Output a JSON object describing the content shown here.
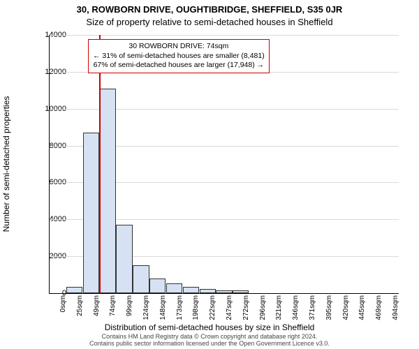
{
  "titles": {
    "line1": "30, ROWBORN DRIVE, OUGHTIBRIDGE, SHEFFIELD, S35 0JR",
    "line2": "Size of property relative to semi-detached houses in Sheffield"
  },
  "axes": {
    "ylabel": "Number of semi-detached properties",
    "xlabel": "Distribution of semi-detached houses by size in Sheffield",
    "ylim": [
      0,
      14000
    ],
    "yticks": [
      0,
      2000,
      4000,
      6000,
      8000,
      10000,
      12000,
      14000
    ],
    "ytick_labels": [
      "0",
      "2000",
      "4000",
      "6000",
      "8000",
      "10000",
      "12000",
      "14000"
    ],
    "xtick_labels": [
      "0sqm",
      "25sqm",
      "49sqm",
      "74sqm",
      "99sqm",
      "124sqm",
      "148sqm",
      "173sqm",
      "198sqm",
      "222sqm",
      "247sqm",
      "272sqm",
      "296sqm",
      "321sqm",
      "346sqm",
      "371sqm",
      "395sqm",
      "420sqm",
      "445sqm",
      "469sqm",
      "494sqm"
    ]
  },
  "bars": {
    "values": [
      0,
      350,
      8700,
      11100,
      3700,
      1500,
      800,
      520,
      340,
      220,
      150,
      150,
      0,
      0,
      0,
      0,
      0,
      0,
      0,
      0,
      0
    ],
    "fill_color": "#d6e2f3",
    "edge_color": "#333333"
  },
  "reference_line": {
    "bin_index": 3,
    "color": "#cc0000",
    "width": 2
  },
  "infobox": {
    "line1": "30 ROWBORN DRIVE: 74sqm",
    "line2": "← 31% of semi-detached houses are smaller (8,481)",
    "line3": "67% of semi-detached houses are larger (17,948) →",
    "border_color": "#cc0000"
  },
  "footer": {
    "line1": "Contains HM Land Registry data © Crown copyright and database right 2024.",
    "line2": "Contains public sector information licensed under the Open Government Licence v3.0."
  },
  "style": {
    "plot_bg": "#ffffff",
    "grid_color": "#d9d9d9",
    "title_fontsize": 13,
    "label_fontsize": 12,
    "tick_fontsize": 11,
    "xtick_fontsize": 10
  }
}
